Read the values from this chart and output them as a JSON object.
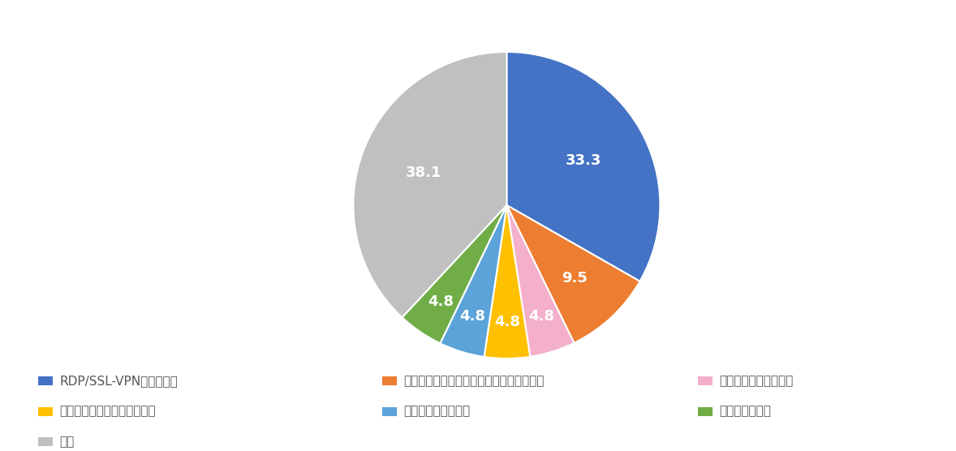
{
  "labels": [
    "RDP/SSL-VPNからの侵入",
    "その他のシステムの脆弱性を悪用する攻撃",
    "メールの添付ファイル",
    "クラウドサービスの認証突破",
    "フィッシングメール",
    "水飲み場型攻撃",
    "不明"
  ],
  "values": [
    33.3,
    9.5,
    4.8,
    4.8,
    4.8,
    4.8,
    38.1
  ],
  "colors": [
    "#4472C4",
    "#ED7D31",
    "#F4AFCB",
    "#FFC000",
    "#5BA3D9",
    "#70AD47",
    "#C0C0C0"
  ],
  "autopct_labels": [
    "33.3",
    "9.5",
    "4.8",
    "4.8",
    "4.8",
    "4.8",
    "38.1"
  ],
  "background_color": "#ffffff",
  "label_fontsize": 13,
  "legend_fontsize": 11
}
